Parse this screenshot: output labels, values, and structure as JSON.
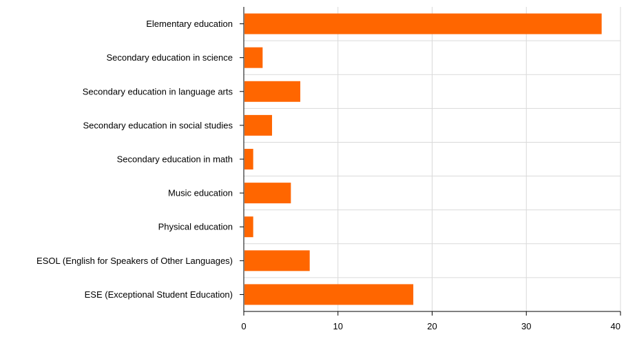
{
  "chart_data": {
    "type": "bar",
    "orientation": "horizontal",
    "categories": [
      "Elementary education",
      "Secondary education in science",
      "Secondary education in language arts",
      "Secondary education in social studies",
      "Secondary education in math",
      "Music education",
      "Physical education",
      "ESOL (English for Speakers of Other Languages)",
      "ESE (Exceptional Student Education)"
    ],
    "values": [
      38,
      2,
      6,
      3,
      1,
      5,
      1,
      7,
      18
    ],
    "title": "",
    "xlabel": "",
    "ylabel": "",
    "xlim": [
      0,
      40
    ],
    "xticks": [
      0,
      10,
      20,
      30,
      40
    ],
    "grid": true,
    "legend": "none",
    "bar_color": "#ff6600",
    "grid_color": "#d9d9d9",
    "axis_color": "#000000"
  }
}
